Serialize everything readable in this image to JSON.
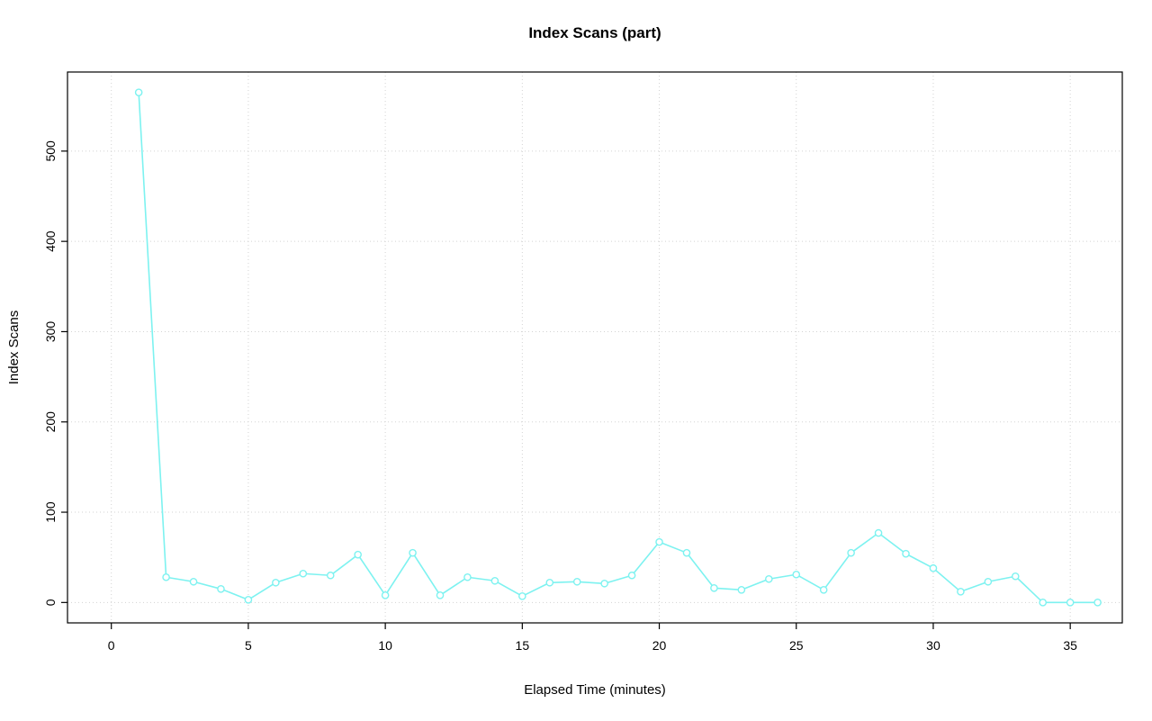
{
  "chart_data": {
    "type": "line",
    "title": "Index Scans (part)",
    "xlabel": "Elapsed Time (minutes)",
    "ylabel": "Index Scans",
    "x": [
      1,
      2,
      3,
      4,
      5,
      6,
      7,
      8,
      9,
      10,
      11,
      12,
      13,
      14,
      15,
      16,
      17,
      18,
      19,
      20,
      21,
      22,
      23,
      24,
      25,
      26,
      27,
      28,
      29,
      30,
      31,
      32,
      33,
      34,
      35,
      36
    ],
    "y": [
      565,
      28,
      23,
      15,
      3,
      22,
      32,
      30,
      53,
      8,
      55,
      8,
      28,
      24,
      7,
      22,
      23,
      21,
      30,
      67,
      55,
      16,
      14,
      26,
      31,
      14,
      55,
      77,
      54,
      38,
      12,
      23,
      29,
      0,
      0,
      0
    ],
    "x_ticks": [
      0,
      5,
      10,
      15,
      20,
      25,
      30,
      35
    ],
    "y_ticks": [
      0,
      100,
      200,
      300,
      400,
      500
    ],
    "xlim": [
      -1.6,
      36.9
    ],
    "ylim": [
      -22.6,
      587.6
    ],
    "grid": true,
    "legend": "none",
    "marker": "open-circle",
    "series_color": "#7DF2F0",
    "grid_color": "#D3D3D3",
    "box_color": "#000000"
  }
}
